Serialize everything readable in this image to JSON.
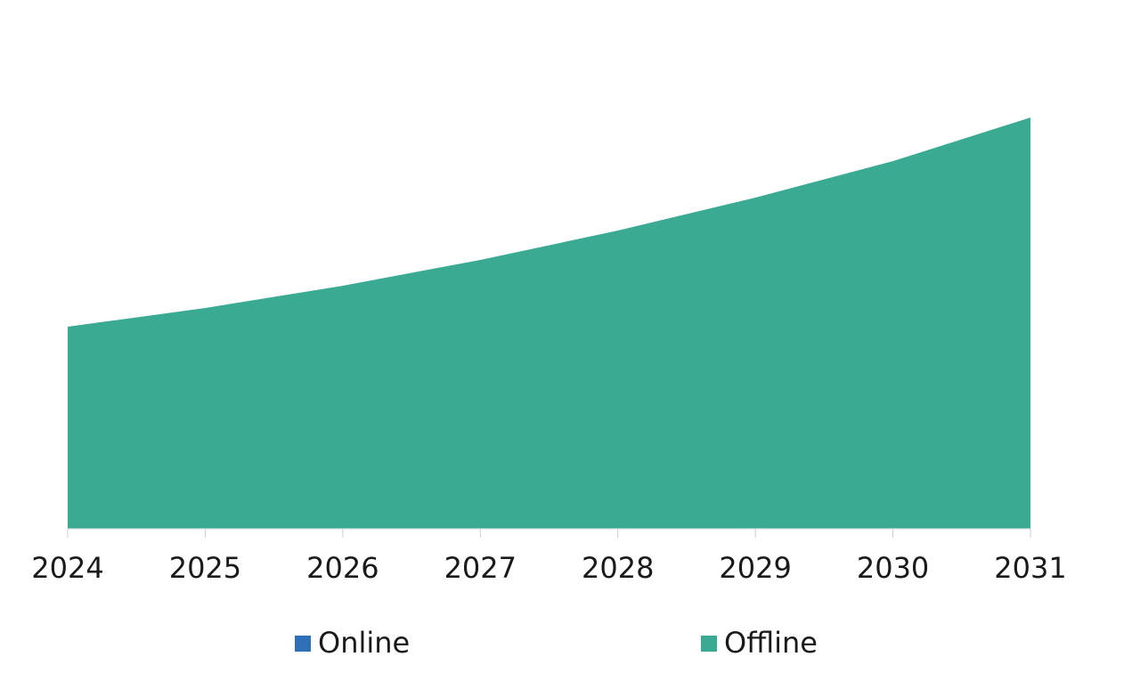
{
  "chart_data": {
    "type": "area",
    "stacked": true,
    "categories": [
      "2024",
      "2025",
      "2026",
      "2027",
      "2028",
      "2029",
      "2030",
      "2031"
    ],
    "series": [
      {
        "name": "Online",
        "color": "#2e6fb7",
        "values": [
          0,
          0,
          0,
          0,
          0,
          0,
          0,
          0
        ]
      },
      {
        "name": "Offline",
        "color": "#3aaa93",
        "values": [
          227,
          248,
          273,
          302,
          335,
          372,
          413,
          462
        ]
      }
    ],
    "ylim": [
      0,
      500
    ],
    "grid": false
  }
}
